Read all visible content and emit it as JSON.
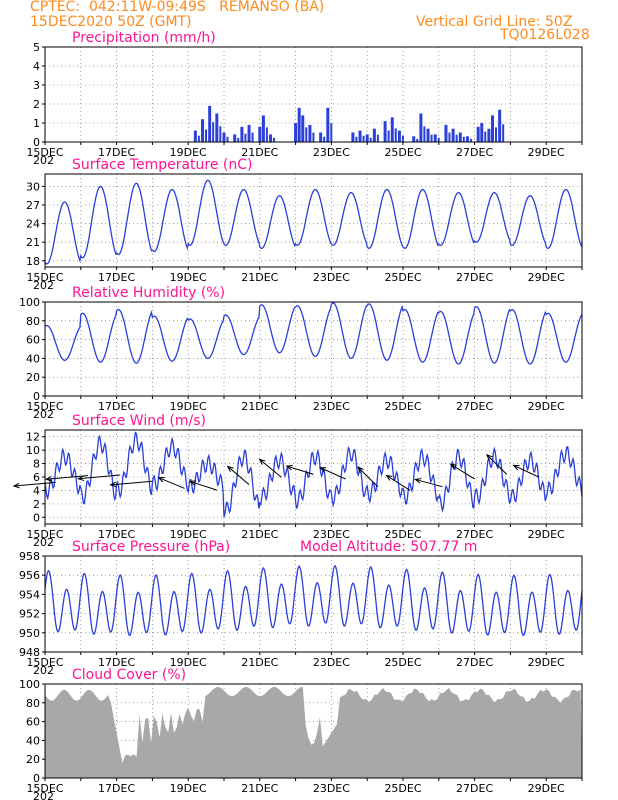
{
  "header": {
    "station_line": "CPTEC:  042:11W-09:49S   REMANSO (BA)",
    "date_line": "15DEC2020 50Z (GMT)",
    "grid_line": "Vertical Grid Line: 50Z",
    "model_code": "TQ0126L028",
    "year_fragment": "202"
  },
  "colors": {
    "series": "#2b3fd9",
    "title": "#ff1493",
    "header": "#ff8a1e",
    "cloud": "#a8a8a8",
    "vector": "#000000"
  },
  "chart_data": [
    {
      "id": "precipitation",
      "type": "bar",
      "title": "Precipitation (mm/h)",
      "ylim": [
        0,
        5
      ],
      "yticks": [
        0,
        1,
        2,
        3,
        4,
        5
      ],
      "x_labels": [
        "15DEC",
        "17DEC",
        "19DEC",
        "21DEC",
        "23DEC",
        "25DEC",
        "27DEC",
        "29DEC"
      ],
      "x": [
        19.2,
        19.4,
        19.6,
        19.8,
        20.0,
        20.3,
        20.5,
        20.7,
        21.0,
        21.1,
        21.3,
        22.0,
        22.1,
        22.2,
        22.4,
        22.7,
        22.9,
        23.6,
        23.8,
        24.0,
        24.2,
        24.5,
        24.7,
        24.9,
        25.3,
        25.5,
        25.7,
        25.9,
        26.2,
        26.4,
        26.6,
        26.8,
        27.1,
        27.2,
        27.4,
        27.5,
        27.7
      ],
      "values": [
        0.6,
        1.2,
        1.9,
        1.5,
        0.5,
        0.4,
        0.8,
        0.9,
        0.8,
        1.4,
        0.4,
        1.0,
        1.8,
        1.4,
        0.9,
        0.5,
        1.8,
        0.5,
        0.6,
        0.4,
        0.7,
        1.1,
        1.3,
        0.6,
        0.3,
        1.5,
        0.7,
        0.4,
        0.9,
        0.7,
        0.5,
        0.3,
        0.8,
        1.0,
        0.7,
        1.4,
        1.7
      ]
    },
    {
      "id": "temperature",
      "type": "line",
      "title": "Surface Temperature (nC)",
      "ylim": [
        17,
        32
      ],
      "yticks": [
        18,
        21,
        24,
        27,
        30
      ],
      "x_labels": [
        "15DEC",
        "17DEC",
        "19DEC",
        "21DEC",
        "23DEC",
        "25DEC",
        "27DEC",
        "29DEC"
      ],
      "daily_max": [
        27.5,
        30.0,
        30.5,
        29.5,
        31.0,
        29.5,
        28.5,
        29.5,
        29.0,
        29.5,
        29.5,
        29.0,
        29.0,
        28.5,
        29.5,
        30.5
      ],
      "daily_min": [
        17.5,
        18.5,
        19.0,
        19.5,
        20.5,
        20.5,
        20.0,
        20.5,
        20.5,
        20.0,
        20.0,
        20.5,
        21.0,
        20.5,
        20.0,
        20.5
      ]
    },
    {
      "id": "humidity",
      "type": "line",
      "title": "Relative Humidity (%)",
      "ylim": [
        0,
        100
      ],
      "yticks": [
        0,
        20,
        40,
        60,
        80,
        100
      ],
      "x_labels": [
        "15DEC",
        "17DEC",
        "19DEC",
        "21DEC",
        "23DEC",
        "25DEC",
        "27DEC",
        "29DEC"
      ],
      "daily_max": [
        75,
        88,
        92,
        85,
        82,
        86,
        97,
        96,
        99,
        98,
        92,
        90,
        95,
        92,
        88,
        82
      ],
      "daily_min": [
        38,
        36,
        35,
        37,
        40,
        44,
        46,
        42,
        40,
        38,
        36,
        34,
        35,
        34,
        36,
        38
      ]
    },
    {
      "id": "wind",
      "type": "line",
      "title": "Surface Wind (m/s)",
      "ylim": [
        -1,
        13
      ],
      "yticks": [
        0,
        2,
        4,
        6,
        8,
        10,
        12
      ],
      "x_labels": [
        "15DEC",
        "17DEC",
        "19DEC",
        "21DEC",
        "23DEC",
        "25DEC",
        "27DEC",
        "29DEC"
      ],
      "daily_max": [
        9,
        11,
        11.5,
        10.5,
        8,
        9,
        8.5,
        9,
        9.5,
        8.5,
        9,
        9,
        9,
        8.5,
        9.5,
        10
      ],
      "daily_min": [
        4,
        3,
        4,
        5,
        4.5,
        1,
        3,
        2.5,
        3,
        3.5,
        3,
        2,
        3,
        3,
        4,
        4
      ]
    },
    {
      "id": "pressure",
      "type": "line",
      "title": "Surface Pressure (hPa)",
      "annotation": "Model Altitude: 507.77 m",
      "ylim": [
        948,
        958
      ],
      "yticks": [
        948,
        950,
        952,
        954,
        956,
        958
      ],
      "x_labels": [
        "15DEC",
        "17DEC",
        "19DEC",
        "21DEC",
        "23DEC",
        "25DEC",
        "27DEC",
        "29DEC"
      ]
    },
    {
      "id": "cloud",
      "type": "area",
      "title": "Cloud Cover (%)",
      "ylim": [
        0,
        100
      ],
      "yticks": [
        0,
        20,
        40,
        60,
        80,
        100
      ],
      "x_labels": [
        "15DEC",
        "17DEC",
        "19DEC",
        "21DEC",
        "23DEC",
        "25DEC",
        "27DEC",
        "29DEC"
      ]
    }
  ]
}
